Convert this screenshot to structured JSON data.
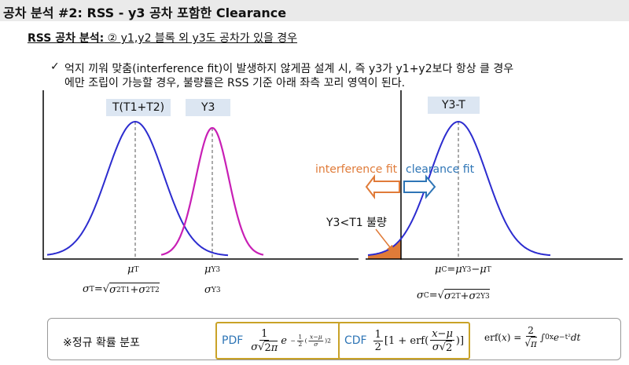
{
  "header": {
    "title": "공차 분석 #2: RSS - y3 공차 포함한 Clearance"
  },
  "subtitle": {
    "bold": "RSS 공차 분석:",
    "rest": " ② y1,y2 블록 외 y3도 공차가 있을 경우"
  },
  "bullet": {
    "mark": "✓",
    "lines": [
      "억지 끼워 맞춤(interference fit)이 발생하지 않게끔 설계 시, 즉 y3가 y1+y2보다 항상 클 경우",
      "에만 조립이 가능할 경우, 불량률은 RSS 기준 아래 좌측 꼬리 영역이 된다."
    ]
  },
  "left": {
    "label_t": "T(T1+T2)",
    "label_y3": "Y3",
    "mu_t": [
      {
        "v": "μ"
      },
      {
        "sub": "T"
      }
    ],
    "mu_y3": [
      {
        "v": "μ"
      },
      {
        "sub": "Y3"
      }
    ],
    "sigma_t": [
      {
        "v": "σ"
      },
      {
        "sub": "T"
      },
      {
        "t": "="
      },
      {
        "sqrt": [
          {
            "v": "σ"
          },
          {
            "sup": "2"
          },
          {
            "sub": "T1"
          },
          {
            "t": " + "
          },
          {
            "v": "σ"
          },
          {
            "sup": "2"
          },
          {
            "sub": "T2"
          }
        ],
        "sign": "√"
      }
    ],
    "sigma_y3": [
      {
        "v": "σ"
      },
      {
        "sub": "Y3"
      }
    ]
  },
  "right": {
    "label": "Y3-T",
    "interference": "interference fit",
    "clearance": "clearance fit",
    "defect": "Y3<T1 불량",
    "mu_c": [
      {
        "v": "μ"
      },
      {
        "sub": "C"
      },
      {
        "t": "="
      },
      {
        "v": "μ"
      },
      {
        "sub": "Y3"
      },
      {
        "t": " − "
      },
      {
        "v": "μ"
      },
      {
        "sub": "T"
      }
    ],
    "sigma_c": [
      {
        "v": "σ"
      },
      {
        "sub": "C"
      },
      {
        "t": "="
      },
      {
        "sqrt": [
          {
            "v": "σ"
          },
          {
            "sup": "2"
          },
          {
            "sub": "T"
          },
          {
            "t": " + "
          },
          {
            "v": "σ"
          },
          {
            "sup": "2"
          },
          {
            "sub": "Y3"
          }
        ],
        "sign": "√"
      }
    ]
  },
  "footer": {
    "label": "※정규 확률 분포",
    "pdf_tag": "PDF",
    "pdf": [
      {
        "frac": {
          "num": [
            {
              "t": "1"
            }
          ],
          "den": [
            {
              "v": "σ"
            },
            {
              "sqrt": [
                {
                  "t": "2"
                },
                {
                  "v": "π"
                }
              ],
              "sign": "√"
            }
          ]
        }
      },
      {
        "v": "e"
      },
      {
        "sup": [
          {
            "t": "−"
          },
          {
            "frac": {
              "num": [
                {
                  "t": "1"
                }
              ],
              "den": [
                {
                  "t": "2"
                }
              ]
            }
          },
          {
            "t": "("
          },
          {
            "frac": {
              "num": [
                {
                  "v": "x"
                },
                {
                  "t": "−"
                },
                {
                  "v": "μ"
                }
              ],
              "den": [
                {
                  "v": "σ"
                }
              ]
            }
          },
          {
            "t": ")"
          },
          {
            "sup": "2"
          }
        ]
      }
    ],
    "cdf_tag": "CDF",
    "cdf": [
      {
        "frac": {
          "num": [
            {
              "t": "1"
            }
          ],
          "den": [
            {
              "t": "2"
            }
          ]
        }
      },
      {
        "t": "[1 + erf("
      },
      {
        "frac": {
          "num": [
            {
              "v": "x"
            },
            {
              "t": " − "
            },
            {
              "v": "μ"
            }
          ],
          "den": [
            {
              "v": "σ"
            },
            {
              "sqrt": [
                {
                  "t": "2"
                }
              ],
              "sign": "√"
            }
          ]
        }
      },
      {
        "t": ")]"
      }
    ],
    "erf": [
      {
        "t": "erf("
      },
      {
        "v": "x"
      },
      {
        "t": ") = "
      },
      {
        "frac": {
          "num": [
            {
              "t": "2"
            }
          ],
          "den": [
            {
              "sqrt": [
                {
                  "v": "π"
                }
              ],
              "sign": "√"
            }
          ]
        }
      },
      {
        "t": "∫"
      },
      {
        "sub": "0"
      },
      {
        "sup": "x"
      },
      {
        "v": " e"
      },
      {
        "sup": "−t²"
      },
      {
        "v": " dt"
      }
    ]
  }
}
